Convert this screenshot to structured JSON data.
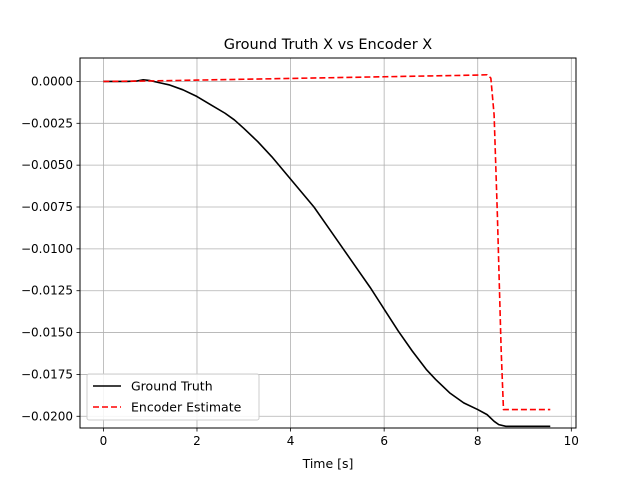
{
  "chart_data": {
    "type": "line",
    "title": "Ground Truth X vs Encoder X",
    "xlabel": "Time [s]",
    "ylabel": "",
    "xlim": [
      -0.5,
      10.1
    ],
    "ylim": [
      -0.0207,
      0.0014
    ],
    "x_ticks": [
      0,
      2,
      4,
      6,
      8,
      10
    ],
    "y_ticks": [
      0.0,
      -0.0025,
      -0.005,
      -0.0075,
      -0.01,
      -0.0125,
      -0.015,
      -0.0175,
      -0.02
    ],
    "x_tick_labels": [
      "0",
      "2",
      "4",
      "6",
      "8",
      "10"
    ],
    "y_tick_labels": [
      "0.0000",
      "−0.0025",
      "−0.0050",
      "−0.0075",
      "−0.0100",
      "−0.0125",
      "−0.0150",
      "−0.0175",
      "−0.0200"
    ],
    "grid": true,
    "legend_position": "lower-left",
    "series": [
      {
        "name": "Ground Truth",
        "color": "#000000",
        "style": "solid",
        "x": [
          0.0,
          0.5,
          0.7,
          0.85,
          1.0,
          1.2,
          1.4,
          1.7,
          2.0,
          2.3,
          2.6,
          2.8,
          3.0,
          3.3,
          3.6,
          3.9,
          4.2,
          4.5,
          4.8,
          5.1,
          5.4,
          5.7,
          6.0,
          6.3,
          6.6,
          6.9,
          7.1,
          7.4,
          7.7,
          8.0,
          8.2,
          8.35,
          8.45,
          8.6,
          9.0,
          9.55
        ],
        "y": [
          0.0,
          0.0,
          2e-05,
          0.0001,
          5e-05,
          -8e-05,
          -0.0002,
          -0.0005,
          -0.0009,
          -0.0014,
          -0.0019,
          -0.0023,
          -0.0028,
          -0.0036,
          -0.0045,
          -0.0055,
          -0.0065,
          -0.0075,
          -0.0087,
          -0.0099,
          -0.0111,
          -0.0123,
          -0.0136,
          -0.0149,
          -0.0161,
          -0.0172,
          -0.0178,
          -0.0186,
          -0.0192,
          -0.0196,
          -0.0199,
          -0.0203,
          -0.0205,
          -0.0206,
          -0.0206,
          -0.0206
        ],
        "y_scale_note": ""
      },
      {
        "name": "Encoder Estimate",
        "color": "#ff0000",
        "style": "dashed",
        "x": [
          0.0,
          1.0,
          2.0,
          3.0,
          4.0,
          5.0,
          6.0,
          7.0,
          8.0,
          8.2,
          8.28,
          8.35,
          8.42,
          8.5,
          8.55,
          9.0,
          9.55
        ],
        "y": [
          0.0,
          3e-05,
          8e-05,
          0.00013,
          0.00018,
          0.00023,
          0.00028,
          0.00033,
          0.00038,
          0.0004,
          0.0002,
          -0.002,
          -0.008,
          -0.016,
          -0.0196,
          -0.0196,
          -0.0196
        ]
      }
    ]
  }
}
